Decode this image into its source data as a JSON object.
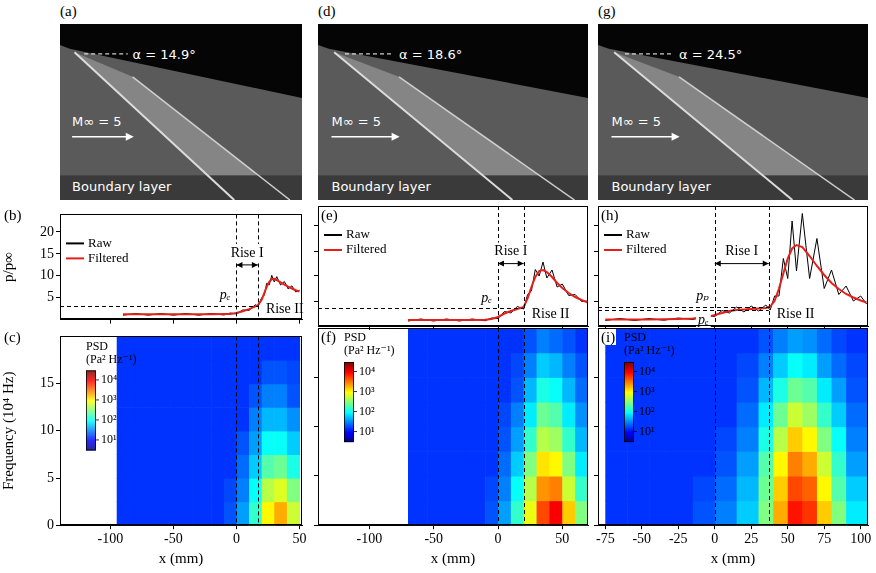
{
  "images": [
    {
      "panel": "(a)",
      "alpha_label": "α = 14.9°",
      "mach_label": "M∞ = 5",
      "region_label": "Boundary layer"
    },
    {
      "panel": "(d)",
      "alpha_label": "α = 18.6°",
      "mach_label": "M∞ = 5",
      "region_label": "Boundary layer"
    },
    {
      "panel": "(g)",
      "alpha_label": "α = 24.5°",
      "mach_label": "M∞ = 5",
      "region_label": "Boundary layer"
    }
  ],
  "chart_data": [
    {
      "panel": "(b)",
      "type": "line",
      "y_label": "p/p∞",
      "tick_labels": "y",
      "grid": false,
      "legend": "upper left",
      "xlim": [
        -140,
        52
      ],
      "xticks": [
        -100,
        -50,
        0,
        50
      ],
      "ylim": [
        0,
        24
      ],
      "yticks": [
        5,
        10,
        15,
        20
      ],
      "x": [
        -90,
        -80,
        -70,
        -60,
        -50,
        -40,
        -30,
        -20,
        -10,
        -5,
        0,
        5,
        10,
        15,
        17,
        20,
        22,
        24,
        26,
        28,
        30,
        32,
        35,
        38,
        41,
        44,
        47,
        50
      ],
      "series": [
        {
          "name": "Raw",
          "color": "#000000",
          "values": [
            1.0,
            1.4,
            1.0,
            1.4,
            1.0,
            1.4,
            1.0,
            1.4,
            1.05,
            1.5,
            1.3,
            2.2,
            2.1,
            3.4,
            2.9,
            5.0,
            5.5,
            8.3,
            7.9,
            10.1,
            8.6,
            9.8,
            7.9,
            8.7,
            7.0,
            7.7,
            6.3,
            6.7
          ]
        },
        {
          "name": "Filtered",
          "color": "#e3201b",
          "values": [
            1.2,
            1.2,
            1.2,
            1.2,
            1.2,
            1.2,
            1.2,
            1.2,
            1.25,
            1.3,
            1.5,
            1.9,
            2.4,
            3.0,
            3.3,
            4.5,
            6.0,
            7.5,
            8.6,
            9.2,
            9.3,
            9.0,
            8.5,
            8.0,
            7.5,
            7.1,
            6.7,
            6.4
          ]
        }
      ],
      "vlines": [
        0,
        17
      ],
      "levels": [
        {
          "label": "pₑ",
          "value": 3.2
        }
      ],
      "annotations": [
        "Rise I",
        "Rise II"
      ]
    },
    {
      "panel": "(c)",
      "type": "heatmap",
      "x_label": "x (mm)",
      "y_label": "Frequency (10⁴ Hz)",
      "tick_labels": true,
      "grid": false,
      "xlim": [
        -140,
        52
      ],
      "xticks": [
        -100,
        -50,
        0,
        50
      ],
      "ylim": [
        0,
        20
      ],
      "yticks": [
        0,
        5,
        10,
        15
      ],
      "vlines": [
        0,
        17
      ],
      "x_bins": [
        -95,
        -80,
        -65,
        -50,
        -35,
        -20,
        -10,
        0,
        10,
        20,
        30,
        40,
        50
      ],
      "y_bins": [
        0,
        2.5,
        5,
        7.5,
        10,
        12.5,
        15,
        17.5,
        20
      ],
      "cells": [
        [
          15,
          15,
          15,
          15,
          15,
          15,
          20,
          40,
          150,
          1000,
          2000,
          600
        ],
        [
          15,
          15,
          15,
          15,
          15,
          15,
          18,
          30,
          100,
          500,
          700,
          300
        ],
        [
          15,
          15,
          15,
          15,
          15,
          15,
          15,
          25,
          60,
          200,
          250,
          120
        ],
        [
          15,
          15,
          15,
          15,
          15,
          15,
          15,
          20,
          40,
          100,
          100,
          60
        ],
        [
          15,
          15,
          15,
          15,
          15,
          15,
          15,
          15,
          30,
          50,
          50,
          35
        ],
        [
          15,
          15,
          15,
          15,
          15,
          15,
          15,
          15,
          20,
          30,
          30,
          20
        ],
        [
          15,
          15,
          15,
          15,
          15,
          15,
          15,
          15,
          15,
          20,
          20,
          18
        ],
        [
          15,
          15,
          15,
          15,
          15,
          15,
          15,
          15,
          15,
          15,
          15,
          15
        ]
      ],
      "colorbar": {
        "title": "PSD (Pa² Hz⁻¹)",
        "log": true,
        "range": [
          3,
          30000
        ],
        "ticks": [
          {
            "value": 10,
            "label": "10¹"
          },
          {
            "value": 100,
            "label": "10²"
          },
          {
            "value": 1000,
            "label": "10³"
          },
          {
            "value": 10000,
            "label": "10⁴"
          }
        ]
      }
    },
    {
      "panel": "(e)",
      "type": "line",
      "tick_labels": false,
      "grid": false,
      "legend": "upper left",
      "xlim": [
        -140,
        70
      ],
      "xticks": [
        -100,
        -50,
        0,
        50
      ],
      "ylim": [
        0,
        24
      ],
      "yticks": [
        5,
        10,
        15,
        20
      ],
      "x": [
        -70,
        -60,
        -50,
        -40,
        -30,
        -20,
        -10,
        -5,
        0,
        5,
        10,
        15,
        20,
        23,
        26,
        29,
        32,
        35,
        38,
        42,
        46,
        50,
        55,
        60,
        65,
        70
      ],
      "series": [
        {
          "name": "Raw",
          "color": "#000000",
          "values": [
            1.0,
            1.4,
            1.0,
            1.4,
            1.0,
            1.4,
            1.05,
            1.6,
            1.5,
            2.9,
            2.6,
            3.9,
            3.4,
            6.3,
            7.0,
            11.3,
            10.0,
            12.8,
            9.6,
            11.2,
            7.8,
            8.4,
            6.1,
            6.3,
            4.9,
            5.0
          ]
        },
        {
          "name": "Filtered",
          "color": "#e3201b",
          "values": [
            1.2,
            1.2,
            1.2,
            1.2,
            1.2,
            1.2,
            1.25,
            1.4,
            1.8,
            2.5,
            3.0,
            3.4,
            3.8,
            5.5,
            7.8,
            9.8,
            11.0,
            11.2,
            10.8,
            9.8,
            8.6,
            7.6,
            6.6,
            5.8,
            5.2,
            4.7
          ]
        }
      ],
      "vlines": [
        0,
        20
      ],
      "levels": [
        {
          "label": "pₑ",
          "value": 3.6
        }
      ],
      "annotations": [
        "Rise I",
        "Rise II"
      ]
    },
    {
      "panel": "(f)",
      "type": "heatmap",
      "x_label": "x (mm)",
      "tick_labels": "x",
      "grid": false,
      "xlim": [
        -140,
        70
      ],
      "xticks": [
        -100,
        -50,
        0,
        50
      ],
      "ylim": [
        0,
        20
      ],
      "yticks": [
        0,
        5,
        10,
        15
      ],
      "vlines": [
        0,
        20
      ],
      "x_bins": [
        -70,
        -55,
        -40,
        -25,
        -10,
        0,
        10,
        20,
        30,
        40,
        50,
        60,
        70
      ],
      "y_bins": [
        0,
        2.5,
        5,
        7.5,
        10,
        12.5,
        15,
        17.5,
        20
      ],
      "cells": [
        [
          15,
          15,
          15,
          15,
          20,
          40,
          150,
          800,
          5000,
          10000,
          1500,
          300
        ],
        [
          15,
          15,
          15,
          15,
          18,
          30,
          100,
          500,
          2500,
          3000,
          600,
          150
        ],
        [
          15,
          15,
          15,
          15,
          15,
          25,
          60,
          300,
          1200,
          1000,
          300,
          80
        ],
        [
          15,
          15,
          15,
          15,
          15,
          20,
          40,
          150,
          500,
          400,
          150,
          50
        ],
        [
          15,
          15,
          15,
          15,
          15,
          18,
          30,
          80,
          250,
          200,
          80,
          35
        ],
        [
          15,
          15,
          15,
          15,
          15,
          15,
          20,
          50,
          120,
          100,
          50,
          25
        ],
        [
          15,
          15,
          15,
          15,
          15,
          15,
          18,
          30,
          60,
          50,
          30,
          20
        ],
        [
          15,
          15,
          15,
          15,
          15,
          15,
          15,
          20,
          30,
          25,
          20,
          15
        ]
      ],
      "colorbar": {
        "title": "PSD (Pa² Hz⁻¹)",
        "log": true,
        "range": [
          3,
          30000
        ],
        "ticks": [
          {
            "value": 10,
            "label": "10¹"
          },
          {
            "value": 100,
            "label": "10²"
          },
          {
            "value": 1000,
            "label": "10³"
          },
          {
            "value": 10000,
            "label": "10⁴"
          }
        ]
      }
    },
    {
      "panel": "(h)",
      "type": "line",
      "tick_labels": false,
      "grid": false,
      "legend": "upper left",
      "xlim": [
        -80,
        105
      ],
      "xticks": [
        -75,
        -50,
        -25,
        0,
        25,
        50,
        75,
        100
      ],
      "ylim": [
        0,
        24
      ],
      "yticks": [
        5,
        10,
        15,
        20
      ],
      "x": [
        -75,
        -65,
        -55,
        -45,
        -35,
        -25,
        -15,
        -5,
        0,
        5,
        10,
        15,
        20,
        25,
        30,
        35,
        38,
        41,
        44,
        47,
        50,
        53,
        56,
        60,
        65,
        70,
        75,
        80,
        85,
        90,
        95,
        100,
        104
      ],
      "series": [
        {
          "name": "Raw",
          "color": "#000000",
          "values": [
            1.1,
            1.5,
            1.1,
            1.5,
            1.15,
            1.6,
            1.3,
            2.1,
            1.9,
            3.1,
            2.6,
            3.8,
            2.8,
            4.0,
            3.0,
            4.2,
            3.2,
            6.0,
            6.0,
            13.5,
            9.5,
            21.0,
            11.0,
            22.5,
            9.5,
            17.5,
            7.5,
            11.2,
            6.3,
            8.0,
            5.0,
            6.0,
            4.4
          ]
        },
        {
          "name": "Filtered",
          "color": "#e3201b",
          "values": [
            1.3,
            1.3,
            1.3,
            1.3,
            1.35,
            1.4,
            1.5,
            1.8,
            2.2,
            2.6,
            3.0,
            3.2,
            3.3,
            3.4,
            3.5,
            3.6,
            3.9,
            5.0,
            7.5,
            10.5,
            13.5,
            15.5,
            16.2,
            15.8,
            14.0,
            12.0,
            10.2,
            8.6,
            7.4,
            6.4,
            5.7,
            5.1,
            4.7
          ]
        }
      ],
      "vlines": [
        0,
        37
      ],
      "levels": [
        {
          "label": "pₚ",
          "value": 3.9
        },
        {
          "label": "pₑ",
          "value": 3.2
        }
      ],
      "annotations": [
        "Rise I",
        "Rise II"
      ]
    },
    {
      "panel": "(i)",
      "type": "heatmap",
      "x_label": "x (mm)",
      "tick_labels": "x",
      "grid": false,
      "xlim": [
        -80,
        105
      ],
      "xticks": [
        -75,
        -50,
        -25,
        0,
        25,
        50,
        75,
        100
      ],
      "ylim": [
        0,
        20
      ],
      "yticks": [
        0,
        5,
        10,
        15
      ],
      "vlines": [
        0,
        37
      ],
      "x_bins": [
        -75,
        -60,
        -45,
        -30,
        -15,
        0,
        15,
        30,
        40,
        50,
        60,
        70,
        80,
        90,
        105
      ],
      "y_bins": [
        0,
        2.5,
        5,
        7.5,
        10,
        12.5,
        15,
        17.5,
        20
      ],
      "cells": [
        [
          15,
          15,
          15,
          15,
          20,
          30,
          60,
          300,
          2000,
          8000,
          6000,
          1500,
          300,
          80
        ],
        [
          15,
          15,
          15,
          15,
          18,
          25,
          50,
          250,
          1500,
          5000,
          4000,
          1000,
          200,
          60
        ],
        [
          15,
          15,
          15,
          15,
          15,
          20,
          40,
          200,
          1000,
          3000,
          2000,
          600,
          150,
          40
        ],
        [
          15,
          15,
          15,
          15,
          15,
          18,
          30,
          120,
          500,
          1500,
          1000,
          300,
          100,
          30
        ],
        [
          15,
          15,
          15,
          15,
          15,
          15,
          25,
          80,
          250,
          600,
          400,
          150,
          60,
          25
        ],
        [
          15,
          15,
          15,
          15,
          15,
          15,
          20,
          50,
          120,
          250,
          200,
          80,
          40,
          20
        ],
        [
          15,
          15,
          15,
          15,
          15,
          15,
          18,
          30,
          60,
          100,
          80,
          40,
          25,
          18
        ],
        [
          15,
          15,
          15,
          15,
          15,
          15,
          15,
          20,
          30,
          40,
          35,
          25,
          18,
          15
        ]
      ],
      "colorbar": {
        "title": "PSD (Pa² Hz⁻¹)",
        "log": true,
        "range": [
          3,
          30000
        ],
        "ticks": [
          {
            "value": 10,
            "label": "10¹"
          },
          {
            "value": 100,
            "label": "10²"
          },
          {
            "value": 1000,
            "label": "10³"
          },
          {
            "value": 10000,
            "label": "10⁴"
          }
        ]
      }
    }
  ]
}
